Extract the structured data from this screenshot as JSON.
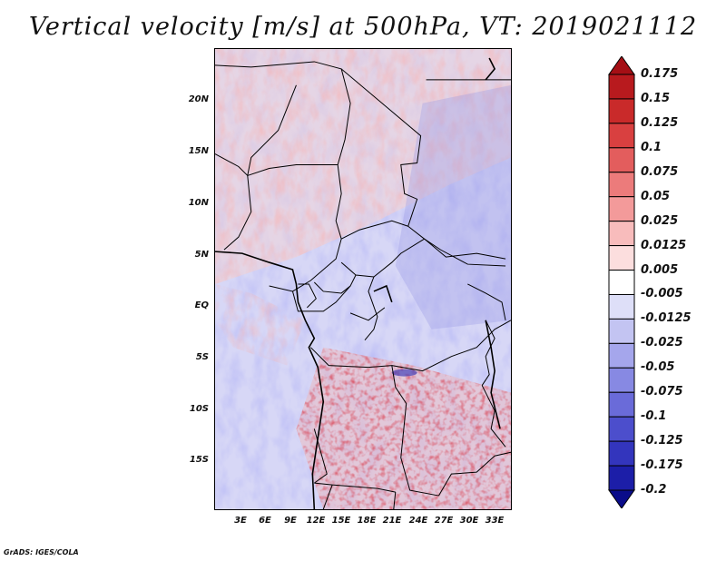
{
  "title": "Vertical velocity [m/s] at 500hPa, VT: 2019021112",
  "credit": "GrADS: IGES/COLA",
  "map": {
    "latitude_labels": [
      "20N",
      "15N",
      "10N",
      "5N",
      "EQ",
      "5S",
      "10S",
      "15S"
    ],
    "longitude_labels": [
      "3E",
      "6E",
      "9E",
      "12E",
      "15E",
      "18E",
      "21E",
      "24E",
      "27E",
      "30E",
      "33E"
    ]
  },
  "colorbar": {
    "labels": [
      "0.175",
      "0.15",
      "0.125",
      "0.1",
      "0.075",
      "0.05",
      "0.025",
      "0.0125",
      "0.005",
      "-0.005",
      "-0.0125",
      "-0.025",
      "-0.05",
      "-0.075",
      "-0.1",
      "-0.125",
      "-0.175",
      "-0.2"
    ],
    "colors": [
      "#a50f15",
      "#b81a1e",
      "#c92a2a",
      "#d94040",
      "#e35d5d",
      "#ec7b7b",
      "#f39a9a",
      "#f8bcbc",
      "#fcdede",
      "#ffffff",
      "#dedff8",
      "#c3c4f2",
      "#a5a6ec",
      "#8789e3",
      "#6a6bd9",
      "#4c4ecc",
      "#3335bd",
      "#1c1ea8",
      "#0a0c8a"
    ]
  }
}
